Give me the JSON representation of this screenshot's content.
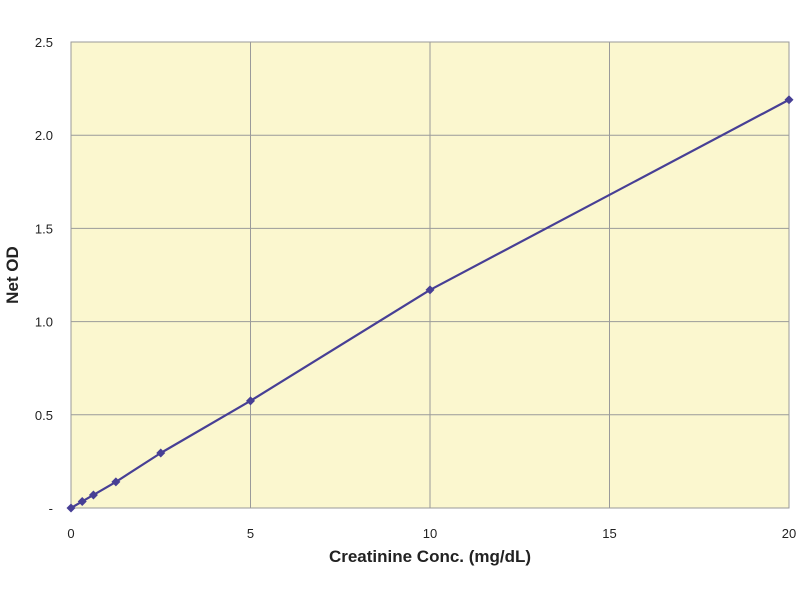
{
  "chart_data": {
    "type": "line",
    "title": "",
    "xlabel": "Creatinine Conc.  (mg/dL)",
    "ylabel": "Net OD",
    "xlim": [
      0,
      20
    ],
    "ylim": [
      0,
      2.5
    ],
    "x_ticks": [
      "0",
      "5",
      "10",
      "15",
      "20"
    ],
    "y_ticks": [
      "-",
      "0.5",
      "1.0",
      "1.5",
      "2.0",
      "2.5"
    ],
    "grid": true,
    "background_color": "#fbf7cf",
    "line_color": "#473f95",
    "marker": "diamond",
    "series": [
      {
        "x": [
          0,
          0.3125,
          0.625,
          1.25,
          2.5,
          5,
          10,
          20
        ],
        "y": [
          0.0,
          0.035,
          0.07,
          0.14,
          0.295,
          0.575,
          1.17,
          2.19
        ]
      }
    ]
  }
}
